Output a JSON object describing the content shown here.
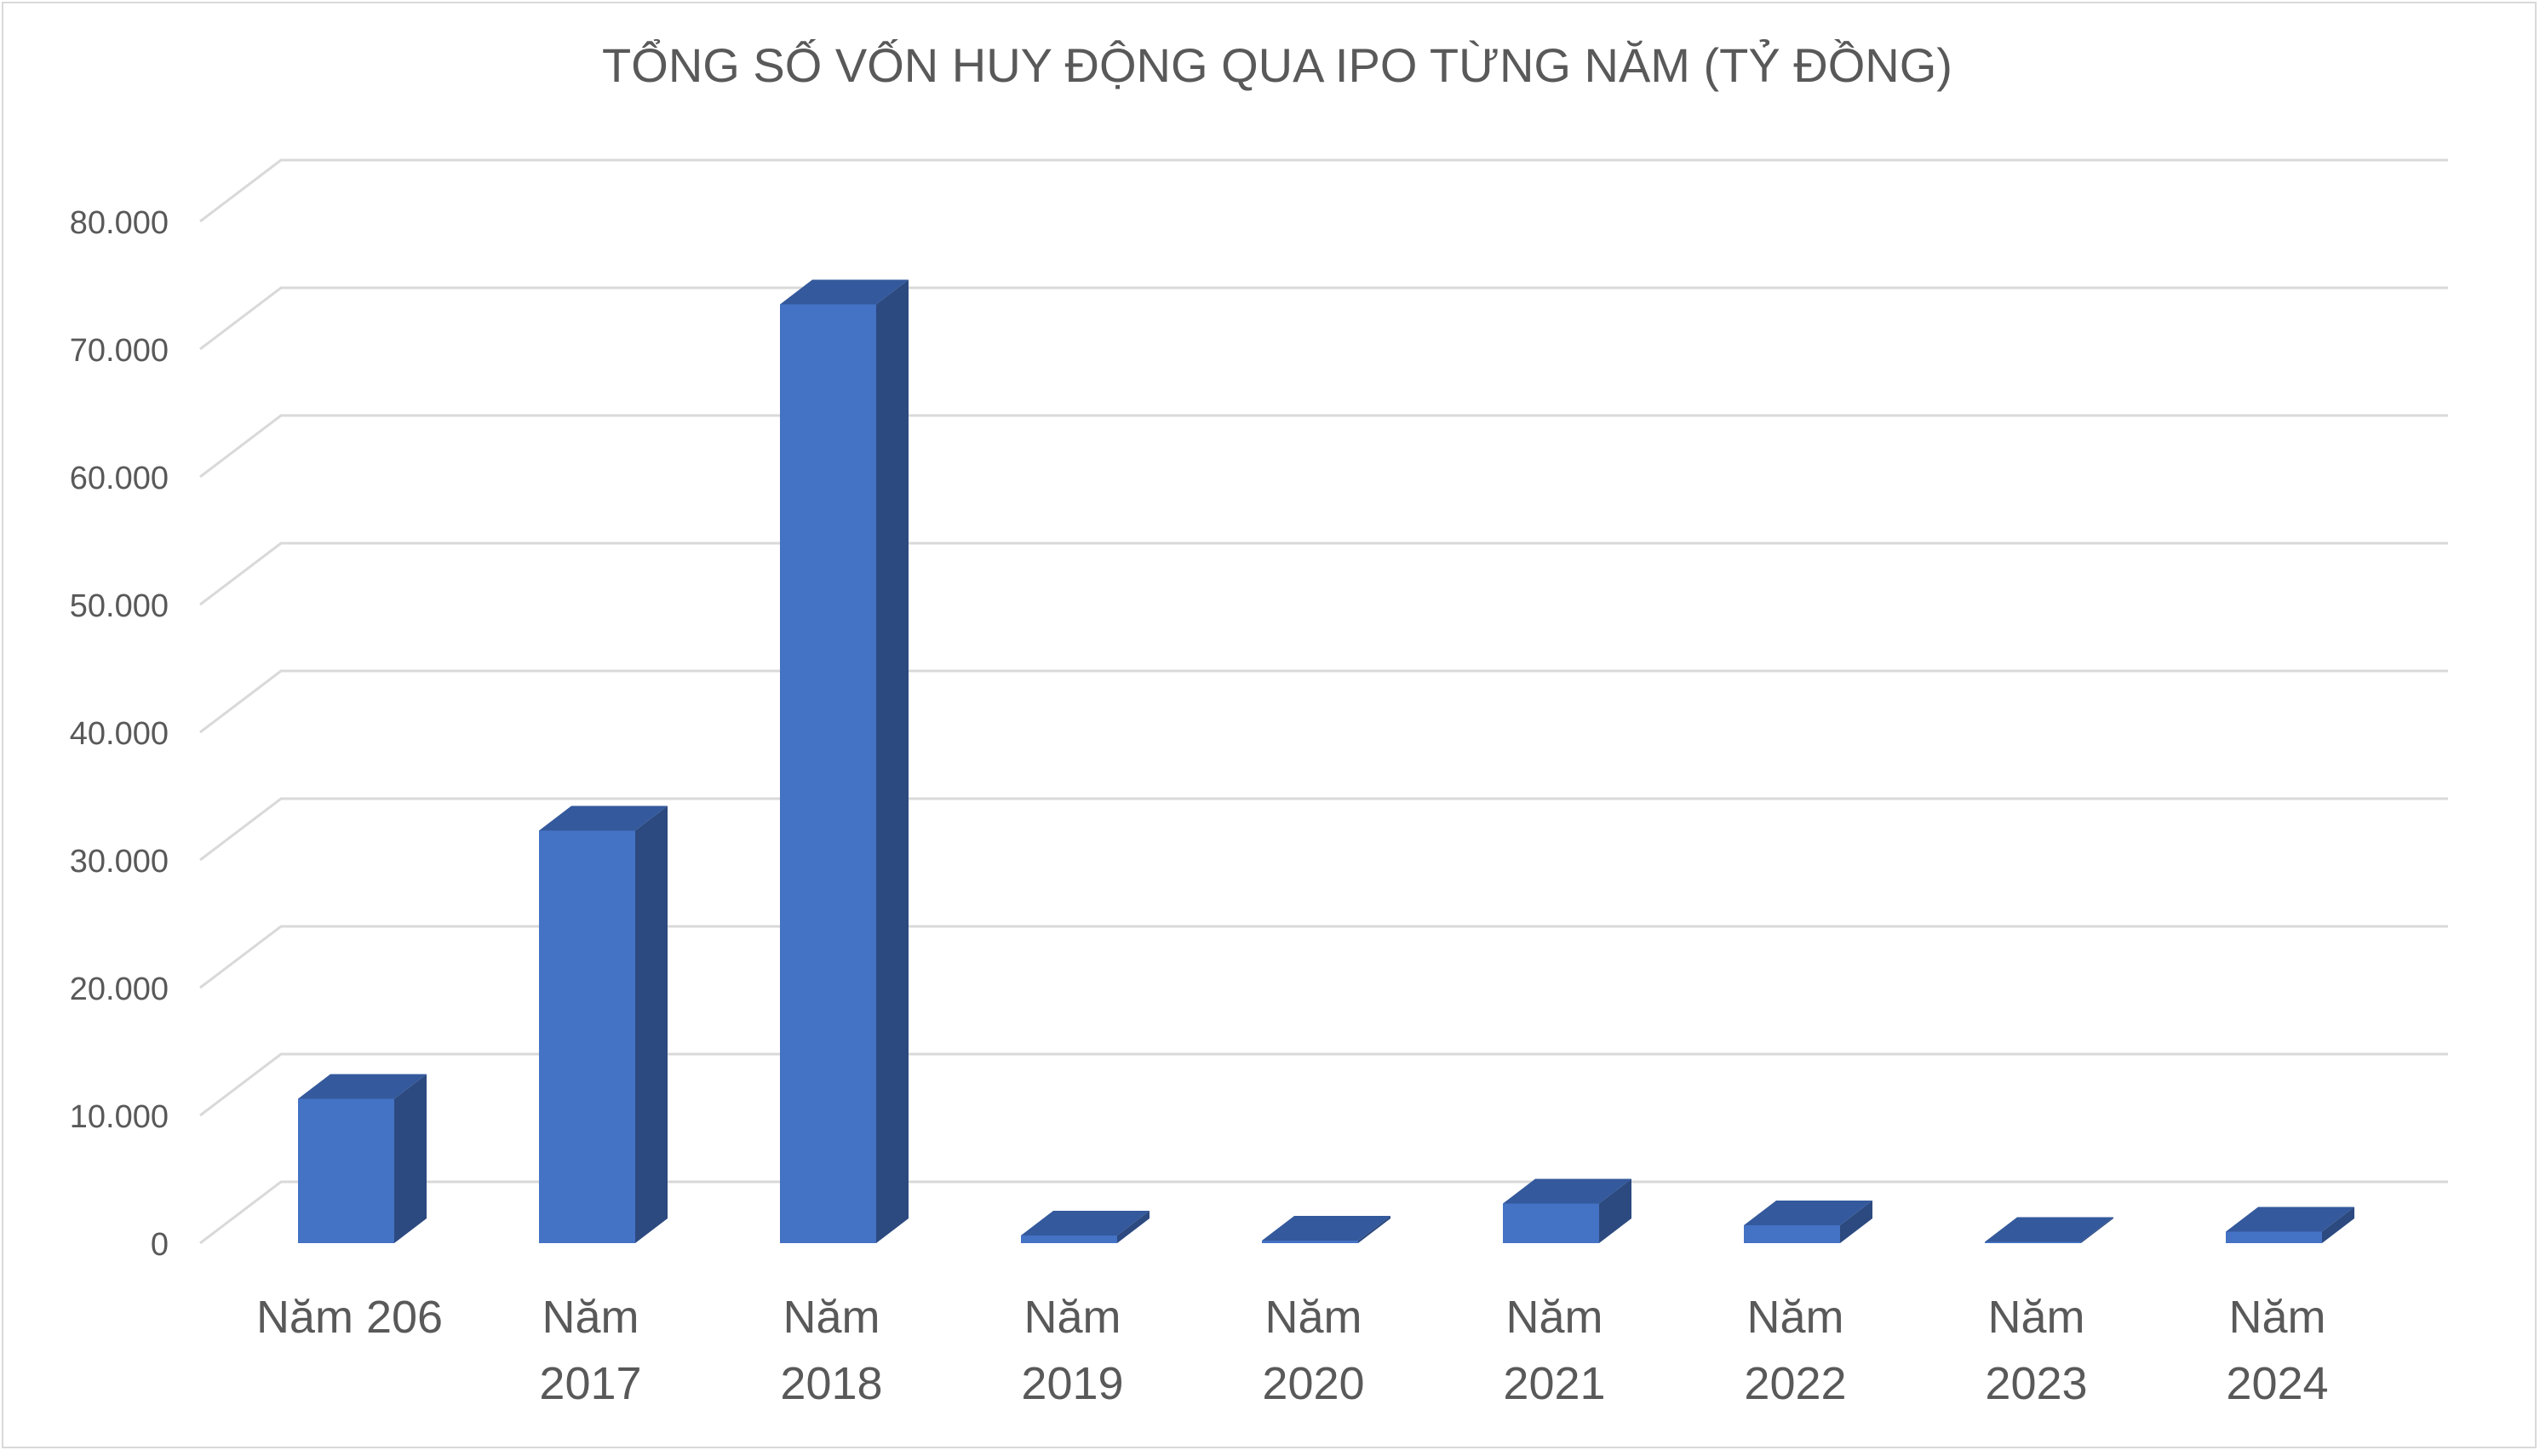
{
  "chart_data": {
    "type": "bar",
    "title": "TỔNG SỐ VỐN HUY ĐỘNG QUA IPO TỪNG NĂM (TỶ ĐỒNG)",
    "xlabel": "",
    "ylabel": "",
    "categories": [
      [
        "Năm 206"
      ],
      [
        "Năm",
        "2017"
      ],
      [
        "Năm",
        "2018"
      ],
      [
        "Năm",
        "2019"
      ],
      [
        "Năm",
        "2020"
      ],
      [
        "Năm",
        "2021"
      ],
      [
        "Năm",
        "2022"
      ],
      [
        "Năm",
        "2023"
      ],
      [
        "Năm",
        "2024"
      ]
    ],
    "values": [
      11300,
      32300,
      73500,
      600,
      200,
      3100,
      1400,
      100,
      900
    ],
    "ylim": [
      0,
      80000
    ],
    "yticks": [
      0,
      10000,
      20000,
      30000,
      40000,
      50000,
      60000,
      70000,
      80000
    ],
    "ytick_labels": [
      "0",
      "10.000",
      "20.000",
      "30.000",
      "40.000",
      "50.000",
      "60.000",
      "70.000",
      "80.000"
    ],
    "grid": true,
    "legend": "none",
    "colors": {
      "bar_front": "#4472c4",
      "bar_side": "#2c4a80",
      "bar_top": "#34599c",
      "gridline": "#d9d9d9",
      "text": "#595959",
      "title": "#595959"
    }
  }
}
